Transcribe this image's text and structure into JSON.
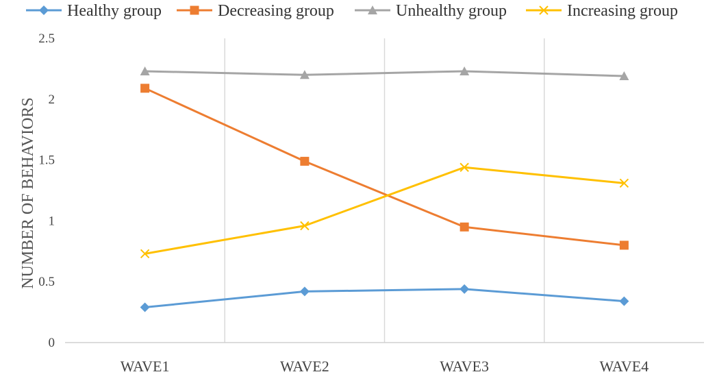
{
  "chart_data": {
    "type": "line",
    "categories": [
      "WAVE1",
      "WAVE2",
      "WAVE3",
      "WAVE4"
    ],
    "ylabel": "NUMBER OF BEHAVIORS",
    "xlabel": "",
    "ylim": [
      0,
      2.5
    ],
    "yticks": [
      "0",
      "0.5",
      "1",
      "1.5",
      "2",
      "2.5"
    ],
    "legend_position": "top",
    "series": [
      {
        "name": "Healthy group",
        "color": "#5B9BD5",
        "marker": "diamond",
        "values": [
          0.29,
          0.42,
          0.44,
          0.34
        ]
      },
      {
        "name": "Decreasing group",
        "color": "#ED7D31",
        "marker": "square",
        "values": [
          2.09,
          1.49,
          0.95,
          0.8
        ]
      },
      {
        "name": "Unhealthy group",
        "color": "#A5A5A5",
        "marker": "triangle",
        "values": [
          2.23,
          2.2,
          2.23,
          2.19
        ]
      },
      {
        "name": "Increasing group",
        "color": "#FFC000",
        "marker": "x",
        "values": [
          0.73,
          0.96,
          1.44,
          1.31
        ]
      }
    ]
  }
}
